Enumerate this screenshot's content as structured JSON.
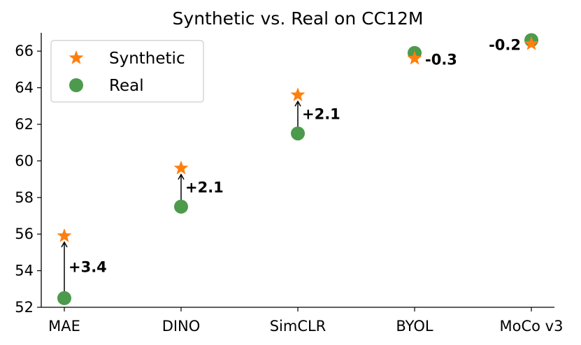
{
  "chart_data": {
    "type": "scatter",
    "title": "Synthetic vs. Real on CC12M",
    "xlabel": "",
    "ylabel": "",
    "categories": [
      "MAE",
      "DINO",
      "SimCLR",
      "BYOL",
      "MoCo v3"
    ],
    "ylim": [
      52,
      67
    ],
    "yticks": [
      52,
      54,
      56,
      58,
      60,
      62,
      64,
      66
    ],
    "grid": false,
    "legend_position": "top-left",
    "series": [
      {
        "name": "Synthetic",
        "marker": "star",
        "color": "#ff7f0e",
        "values": [
          55.9,
          59.6,
          63.6,
          65.6,
          66.4
        ]
      },
      {
        "name": "Real",
        "marker": "circle",
        "color": "#4c9a4c",
        "values": [
          52.5,
          57.5,
          61.5,
          65.9,
          66.6
        ]
      }
    ],
    "annotations": [
      "+3.4",
      "+2.1",
      "+2.1",
      "-0.3",
      "-0.2"
    ]
  }
}
